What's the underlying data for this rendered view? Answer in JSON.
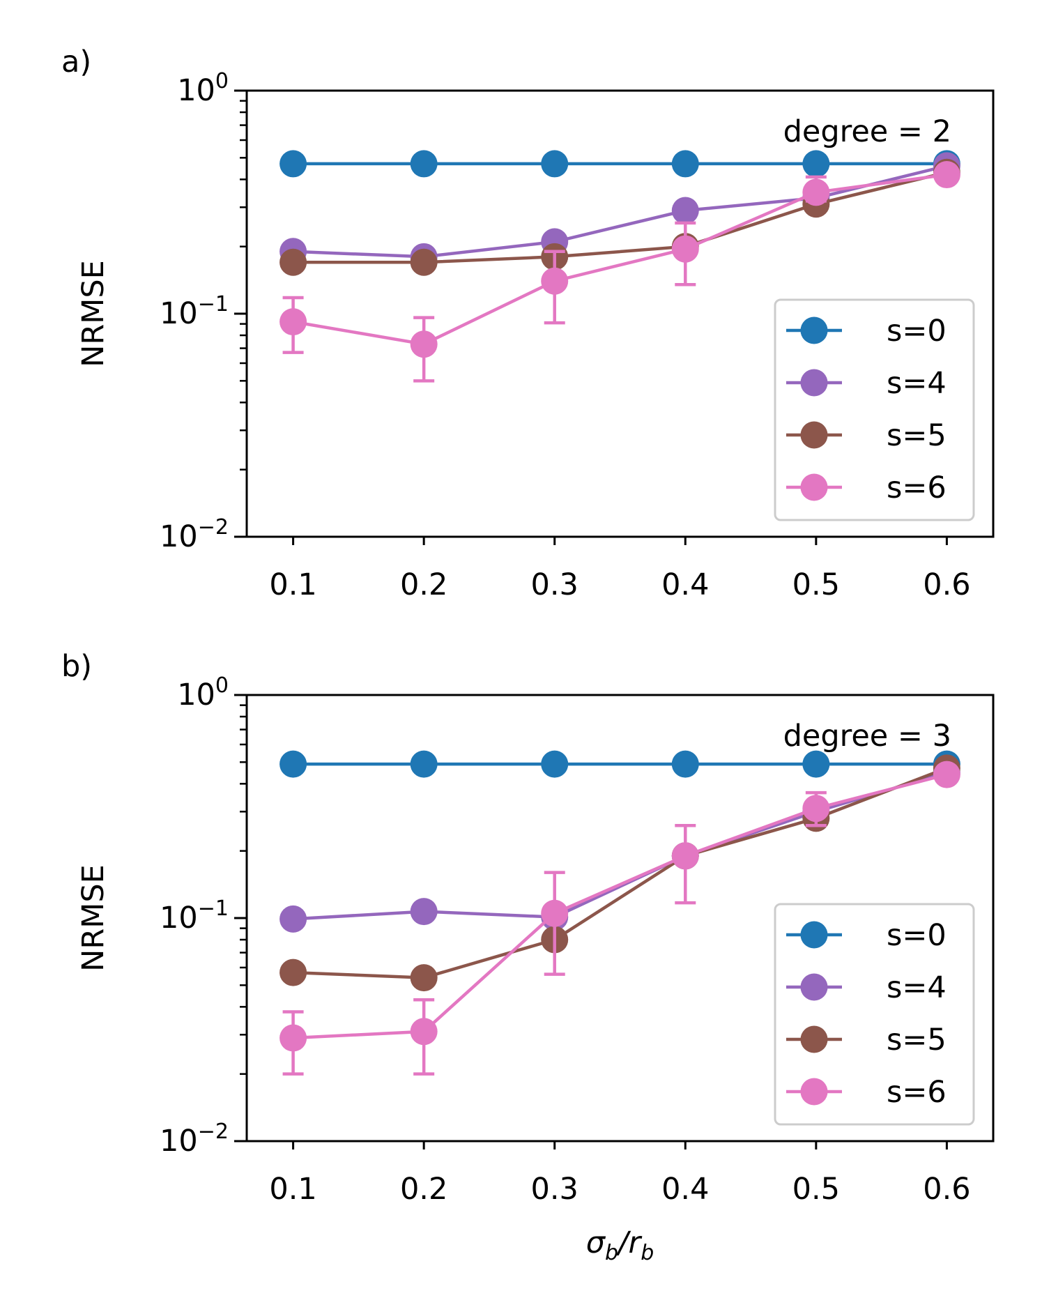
{
  "chart_data": [
    {
      "type": "line",
      "panel_label": "a)",
      "annotation": "degree = 2",
      "ylabel": "NRMSE",
      "xlabel": "",
      "yscale": "log",
      "ylim": [
        0.01,
        1
      ],
      "x": [
        0.1,
        0.2,
        0.3,
        0.4,
        0.5,
        0.6
      ],
      "x_tick_labels": [
        "0.1",
        "0.2",
        "0.3",
        "0.4",
        "0.5",
        "0.6"
      ],
      "y_ticks": [
        {
          "value": 0.01,
          "base": "10",
          "exp": "−2"
        },
        {
          "value": 0.1,
          "base": "10",
          "exp": "−1"
        },
        {
          "value": 1,
          "base": "10",
          "exp": "0"
        }
      ],
      "legend_position": "lower-right",
      "series": [
        {
          "name": "s=0",
          "color": "#1f77b4",
          "values": [
            0.47,
            0.47,
            0.47,
            0.47,
            0.47,
            0.47
          ]
        },
        {
          "name": "s=4",
          "color": "#9467bd",
          "values": [
            0.19,
            0.18,
            0.21,
            0.29,
            0.33,
            0.46
          ]
        },
        {
          "name": "s=5",
          "color": "#8c564b",
          "values": [
            0.17,
            0.17,
            0.18,
            0.2,
            0.31,
            0.43
          ]
        },
        {
          "name": "s=6",
          "color": "#e377c2",
          "values": [
            0.092,
            0.073,
            0.14,
            0.195,
            0.35,
            0.42
          ],
          "err_low": [
            0.067,
            0.05,
            0.091,
            0.135,
            0.32,
            0.4
          ],
          "err_high": [
            0.118,
            0.096,
            0.19,
            0.255,
            0.41,
            0.45
          ]
        }
      ]
    },
    {
      "type": "line",
      "panel_label": "b)",
      "annotation": "degree = 3",
      "ylabel": "NRMSE",
      "xlabel": "σb/rb",
      "xlabel_main": "σ",
      "xlabel_main_sub": "b",
      "xlabel_sep": "/r",
      "xlabel_sep_sub": "b",
      "yscale": "log",
      "ylim": [
        0.01,
        1
      ],
      "x": [
        0.1,
        0.2,
        0.3,
        0.4,
        0.5,
        0.6
      ],
      "x_tick_labels": [
        "0.1",
        "0.2",
        "0.3",
        "0.4",
        "0.5",
        "0.6"
      ],
      "y_ticks": [
        {
          "value": 0.01,
          "base": "10",
          "exp": "−2"
        },
        {
          "value": 0.1,
          "base": "10",
          "exp": "−1"
        },
        {
          "value": 1,
          "base": "10",
          "exp": "0"
        }
      ],
      "legend_position": "lower-right",
      "series": [
        {
          "name": "s=0",
          "color": "#1f77b4",
          "values": [
            0.49,
            0.49,
            0.49,
            0.49,
            0.49,
            0.49
          ]
        },
        {
          "name": "s=4",
          "color": "#9467bd",
          "values": [
            0.099,
            0.107,
            0.101,
            0.19,
            0.3,
            0.45
          ]
        },
        {
          "name": "s=5",
          "color": "#8c564b",
          "values": [
            0.057,
            0.054,
            0.08,
            0.19,
            0.28,
            0.47
          ]
        },
        {
          "name": "s=6",
          "color": "#e377c2",
          "values": [
            0.029,
            0.031,
            0.105,
            0.19,
            0.31,
            0.44
          ],
          "err_low": [
            0.02,
            0.02,
            0.056,
            0.117,
            0.26,
            0.42
          ],
          "err_high": [
            0.038,
            0.043,
            0.16,
            0.26,
            0.365,
            0.46
          ]
        }
      ]
    }
  ]
}
